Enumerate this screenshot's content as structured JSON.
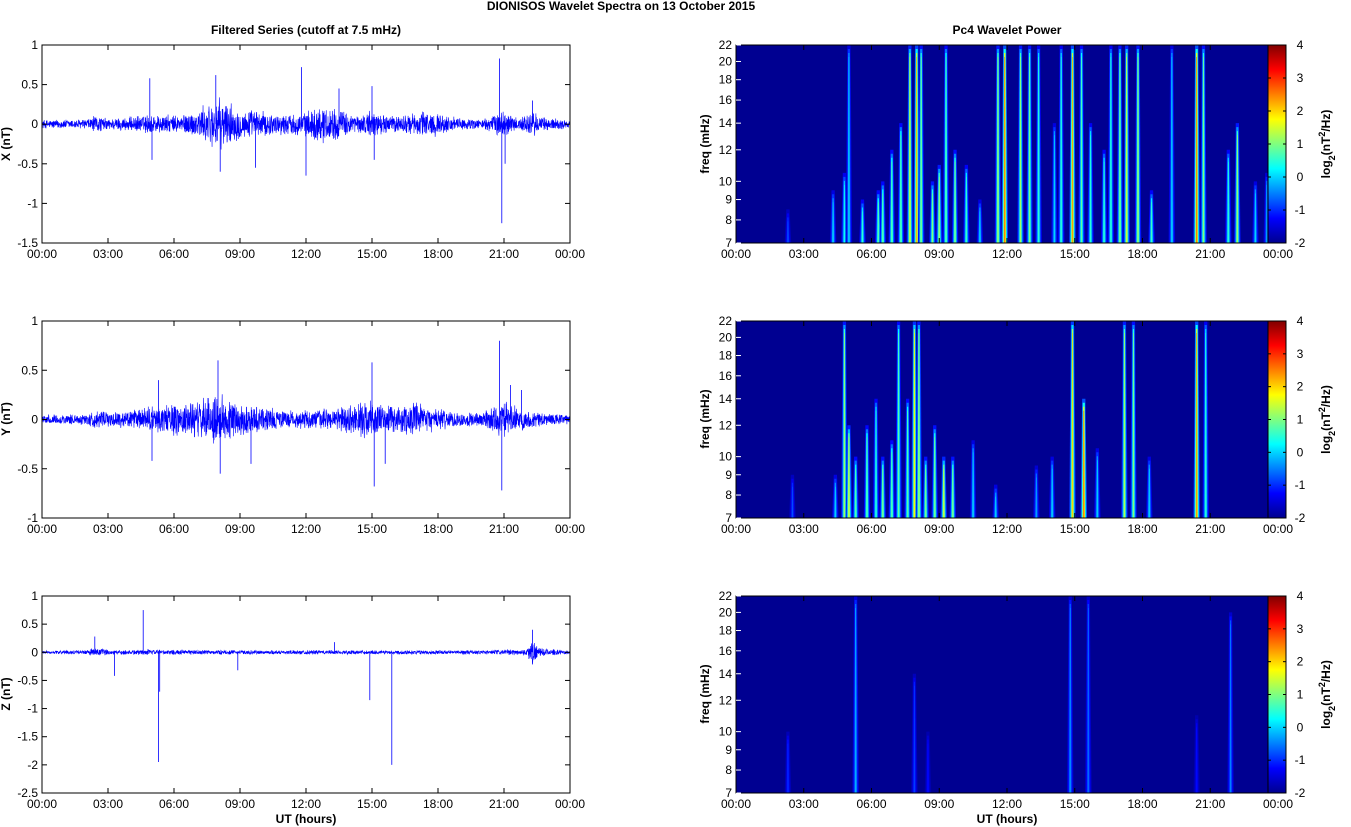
{
  "figure": {
    "title": "DIONISOS Wavelet Spectra on 13 October   2015"
  },
  "chart_data": [
    {
      "type": "line",
      "id": "x",
      "title": "Filtered Series (cutoff at 7.5 mHz)",
      "xlabel": "",
      "ylabel": "X (nT)",
      "xlim": [
        0,
        24
      ],
      "ylim": [
        -1.5,
        1
      ],
      "xticks": [
        "00:00",
        "03:00",
        "06:00",
        "09:00",
        "12:00",
        "15:00",
        "18:00",
        "21:00",
        "00:00"
      ],
      "yticks": [
        -1.5,
        -1,
        -0.5,
        0,
        0.5,
        1
      ],
      "line_color": "#0000ff",
      "envelope": [
        [
          0,
          0.06
        ],
        [
          2,
          0.07
        ],
        [
          2.4,
          0.12
        ],
        [
          3,
          0.08
        ],
        [
          4,
          0.1
        ],
        [
          5,
          0.14
        ],
        [
          6,
          0.12
        ],
        [
          7,
          0.18
        ],
        [
          7.5,
          0.28
        ],
        [
          8,
          0.35
        ],
        [
          8.5,
          0.3
        ],
        [
          9,
          0.2
        ],
        [
          9.5,
          0.2
        ],
        [
          10,
          0.18
        ],
        [
          10.5,
          0.15
        ],
        [
          11,
          0.14
        ],
        [
          12,
          0.16
        ],
        [
          12.5,
          0.25
        ],
        [
          13,
          0.25
        ],
        [
          13.5,
          0.2
        ],
        [
          14,
          0.15
        ],
        [
          14.5,
          0.12
        ],
        [
          15,
          0.2
        ],
        [
          15.5,
          0.13
        ],
        [
          16,
          0.12
        ],
        [
          17,
          0.15
        ],
        [
          17.5,
          0.2
        ],
        [
          18,
          0.15
        ],
        [
          19,
          0.08
        ],
        [
          20,
          0.07
        ],
        [
          20.5,
          0.12
        ],
        [
          21,
          0.2
        ],
        [
          21.5,
          0.1
        ],
        [
          22,
          0.12
        ],
        [
          22.3,
          0.2
        ],
        [
          22.7,
          0.1
        ],
        [
          24,
          0.06
        ]
      ],
      "spikes": [
        [
          4.9,
          0.58
        ],
        [
          5,
          -0.45
        ],
        [
          7.9,
          0.62
        ],
        [
          8.1,
          -0.6
        ],
        [
          9.7,
          -0.55
        ],
        [
          11.8,
          0.72
        ],
        [
          12,
          -0.65
        ],
        [
          13.5,
          0.45
        ],
        [
          15,
          0.48
        ],
        [
          15.1,
          -0.45
        ],
        [
          20.8,
          0.83
        ],
        [
          20.9,
          -1.25
        ],
        [
          21.05,
          -0.5
        ],
        [
          22.3,
          0.3
        ]
      ]
    },
    {
      "type": "heatmap",
      "id": "xw",
      "title": "Pc4 Wavelet Power",
      "xlabel": "",
      "ylabel": "freq (mHz)",
      "xlim": [
        0,
        24
      ],
      "ylim": [
        7,
        22
      ],
      "xticks": [
        "00:00",
        "03:00",
        "06:00",
        "09:00",
        "12:00",
        "15:00",
        "18:00",
        "21:00",
        "00:00"
      ],
      "yticks": [
        7,
        8,
        9,
        10,
        12,
        14,
        16,
        18,
        20,
        22
      ],
      "yscale": "log",
      "colorbar": {
        "label": "log2(nT2/Hz)",
        "range": [
          -2,
          4
        ],
        "ticks": [
          -2,
          -1,
          0,
          1,
          2,
          3,
          4
        ]
      },
      "background_level": -1.9,
      "ridges": [
        [
          2.3,
          8.5,
          -0.8
        ],
        [
          4.3,
          9.5,
          0.0
        ],
        [
          4.8,
          10.5,
          0.3
        ],
        [
          5.0,
          22,
          0.0
        ],
        [
          5.6,
          9.0,
          0.5
        ],
        [
          6.3,
          9.5,
          0.8
        ],
        [
          6.5,
          10.0,
          0.8
        ],
        [
          6.9,
          12.0,
          0.8
        ],
        [
          7.3,
          14.0,
          0.8
        ],
        [
          7.7,
          22,
          1.5
        ],
        [
          8.0,
          22,
          2.2
        ],
        [
          8.2,
          22,
          1.0
        ],
        [
          8.7,
          10.0,
          1.0
        ],
        [
          9.0,
          11.0,
          1.2
        ],
        [
          9.3,
          22,
          0.8
        ],
        [
          9.7,
          12.0,
          1.0
        ],
        [
          10.2,
          11.0,
          0.6
        ],
        [
          10.8,
          9.0,
          0.0
        ],
        [
          11.6,
          22,
          1.2
        ],
        [
          11.9,
          22,
          2.6
        ],
        [
          12.6,
          22,
          1.2
        ],
        [
          13.0,
          22,
          1.0
        ],
        [
          13.4,
          22,
          0.5
        ],
        [
          14.1,
          14.0,
          0.0
        ],
        [
          14.4,
          22,
          0.5
        ],
        [
          14.9,
          22,
          2.3
        ],
        [
          15.3,
          22,
          0.8
        ],
        [
          15.7,
          14.0,
          0.5
        ],
        [
          16.3,
          12.0,
          0.5
        ],
        [
          16.6,
          22,
          0.5
        ],
        [
          17.0,
          22,
          1.0
        ],
        [
          17.3,
          22,
          1.5
        ],
        [
          17.8,
          22,
          1.2
        ],
        [
          18.4,
          9.5,
          0.6
        ],
        [
          19.3,
          22,
          0.0
        ],
        [
          20.4,
          22,
          2.6
        ],
        [
          20.7,
          22,
          1.0
        ],
        [
          21.8,
          12.0,
          0.5
        ],
        [
          22.2,
          14.0,
          1.2
        ],
        [
          23.0,
          10.0,
          0.0
        ],
        [
          23.5,
          10.5,
          -0.3
        ]
      ]
    },
    {
      "type": "line",
      "id": "y",
      "title": "",
      "xlabel": "",
      "ylabel": "Y (nT)",
      "xlim": [
        0,
        24
      ],
      "ylim": [
        -1,
        1
      ],
      "xticks": [
        "00:00",
        "03:00",
        "06:00",
        "09:00",
        "12:00",
        "15:00",
        "18:00",
        "21:00",
        "00:00"
      ],
      "yticks": [
        -1,
        -0.5,
        0,
        0.5,
        1
      ],
      "line_color": "#0000ff",
      "envelope": [
        [
          0,
          0.05
        ],
        [
          2,
          0.06
        ],
        [
          2.4,
          0.1
        ],
        [
          3,
          0.08
        ],
        [
          4,
          0.1
        ],
        [
          5,
          0.15
        ],
        [
          6,
          0.18
        ],
        [
          7,
          0.2
        ],
        [
          7.5,
          0.25
        ],
        [
          8,
          0.3
        ],
        [
          8.5,
          0.22
        ],
        [
          9,
          0.18
        ],
        [
          10,
          0.15
        ],
        [
          11,
          0.1
        ],
        [
          12,
          0.1
        ],
        [
          13,
          0.12
        ],
        [
          14,
          0.15
        ],
        [
          15,
          0.22
        ],
        [
          15.5,
          0.15
        ],
        [
          16,
          0.15
        ],
        [
          17,
          0.18
        ],
        [
          18,
          0.12
        ],
        [
          19,
          0.08
        ],
        [
          20,
          0.08
        ],
        [
          20.5,
          0.15
        ],
        [
          21,
          0.2
        ],
        [
          21.5,
          0.15
        ],
        [
          22,
          0.1
        ],
        [
          24,
          0.05
        ]
      ],
      "spikes": [
        [
          5,
          -0.42
        ],
        [
          5.3,
          0.4
        ],
        [
          8,
          0.6
        ],
        [
          8.1,
          -0.55
        ],
        [
          9.5,
          -0.45
        ],
        [
          15,
          0.58
        ],
        [
          15.1,
          -0.68
        ],
        [
          15.6,
          -0.45
        ],
        [
          20.8,
          0.8
        ],
        [
          20.9,
          -0.72
        ],
        [
          21.3,
          0.35
        ],
        [
          21.8,
          0.3
        ],
        [
          24,
          -0.35
        ]
      ]
    },
    {
      "type": "heatmap",
      "id": "yw",
      "title": "",
      "xlabel": "",
      "ylabel": "freq (mHz)",
      "xlim": [
        0,
        24
      ],
      "ylim": [
        7,
        22
      ],
      "xticks": [
        "00:00",
        "03:00",
        "06:00",
        "09:00",
        "12:00",
        "15:00",
        "18:00",
        "21:00",
        "00:00"
      ],
      "yticks": [
        7,
        8,
        9,
        10,
        12,
        14,
        16,
        18,
        20,
        22
      ],
      "yscale": "log",
      "colorbar": {
        "label": "log2(nT2/Hz)",
        "range": [
          -2,
          4
        ],
        "ticks": [
          -2,
          -1,
          0,
          1,
          2,
          3,
          4
        ]
      },
      "background_level": -1.9,
      "ridges": [
        [
          2.5,
          9.0,
          -0.8
        ],
        [
          4.4,
          9.0,
          0.0
        ],
        [
          4.8,
          22,
          1.2
        ],
        [
          5.0,
          12.0,
          1.5
        ],
        [
          5.3,
          10.0,
          0.8
        ],
        [
          5.8,
          12.0,
          0.8
        ],
        [
          6.2,
          14.0,
          0.5
        ],
        [
          6.5,
          10.0,
          1.0
        ],
        [
          6.9,
          11.0,
          0.8
        ],
        [
          7.2,
          22,
          0.8
        ],
        [
          7.6,
          14.0,
          0.8
        ],
        [
          7.9,
          22,
          1.8
        ],
        [
          8.1,
          22,
          1.2
        ],
        [
          8.4,
          10.0,
          1.0
        ],
        [
          8.8,
          12.0,
          1.0
        ],
        [
          9.2,
          10.0,
          1.5
        ],
        [
          9.6,
          10.0,
          1.0
        ],
        [
          10.5,
          11.0,
          0.0
        ],
        [
          11.5,
          8.5,
          0.0
        ],
        [
          13.3,
          9.5,
          -0.3
        ],
        [
          14.0,
          10.0,
          0.0
        ],
        [
          14.9,
          22,
          2.0
        ],
        [
          15.4,
          14.0,
          2.6
        ],
        [
          16.0,
          10.5,
          0.0
        ],
        [
          17.2,
          22,
          1.3
        ],
        [
          17.6,
          22,
          1.0
        ],
        [
          18.3,
          10.0,
          0.0
        ],
        [
          20.4,
          22,
          2.4
        ],
        [
          20.8,
          22,
          0.5
        ]
      ]
    },
    {
      "type": "line",
      "id": "z",
      "title": "",
      "xlabel": "UT (hours)",
      "ylabel": "Z (nT)",
      "xlim": [
        0,
        24
      ],
      "ylim": [
        -2.5,
        1
      ],
      "xticks": [
        "00:00",
        "03:00",
        "06:00",
        "09:00",
        "12:00",
        "15:00",
        "18:00",
        "21:00",
        "00:00"
      ],
      "yticks": [
        -2.5,
        -2,
        -1.5,
        -1,
        -0.5,
        0,
        0.5,
        1
      ],
      "line_color": "#0000ff",
      "envelope": [
        [
          0,
          0.03
        ],
        [
          2,
          0.04
        ],
        [
          2.4,
          0.1
        ],
        [
          3,
          0.05
        ],
        [
          5,
          0.05
        ],
        [
          9,
          0.04
        ],
        [
          15,
          0.04
        ],
        [
          20,
          0.04
        ],
        [
          22,
          0.06
        ],
        [
          22.3,
          0.25
        ],
        [
          22.6,
          0.08
        ],
        [
          24,
          0.03
        ]
      ],
      "spikes": [
        [
          2.4,
          0.28
        ],
        [
          3.3,
          -0.42
        ],
        [
          4.6,
          0.75
        ],
        [
          5.3,
          -1.95
        ],
        [
          5.35,
          -0.7
        ],
        [
          8.9,
          -0.32
        ],
        [
          13.3,
          0.18
        ],
        [
          14.9,
          -0.85
        ],
        [
          15.9,
          -2.0
        ],
        [
          22.3,
          0.4
        ]
      ]
    },
    {
      "type": "heatmap",
      "id": "zw",
      "title": "",
      "xlabel": "UT (hours)",
      "ylabel": "freq (mHz)",
      "xlim": [
        0,
        24
      ],
      "ylim": [
        7,
        22
      ],
      "xticks": [
        "00:00",
        "03:00",
        "06:00",
        "09:00",
        "12:00",
        "15:00",
        "18:00",
        "21:00",
        "00:00"
      ],
      "yticks": [
        7,
        8,
        9,
        10,
        12,
        14,
        16,
        18,
        20,
        22
      ],
      "yscale": "log",
      "colorbar": {
        "label": "log2(nT2/Hz)",
        "range": [
          -2,
          4
        ],
        "ticks": [
          -2,
          -1,
          0,
          1,
          2,
          3,
          4
        ]
      },
      "background_level": -1.9,
      "ridges": [
        [
          2.3,
          10.0,
          -1.0
        ],
        [
          5.3,
          22,
          -0.2
        ],
        [
          7.9,
          14.0,
          -0.9
        ],
        [
          8.5,
          10.0,
          -1.2
        ],
        [
          14.8,
          22,
          -0.4
        ],
        [
          15.6,
          22,
          -0.6
        ],
        [
          20.4,
          11.0,
          -1.2
        ],
        [
          21.9,
          20.0,
          -0.5
        ]
      ]
    }
  ]
}
